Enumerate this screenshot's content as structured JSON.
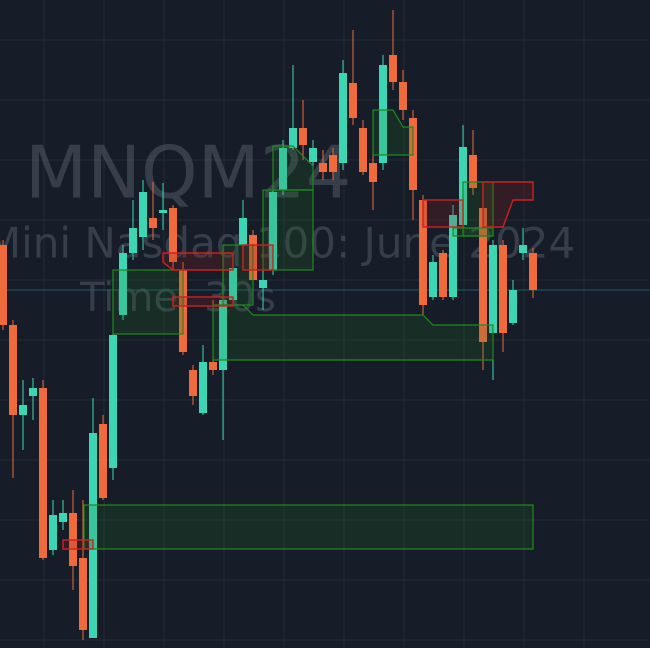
{
  "chart_data": {
    "type": "candlestick",
    "watermark": [
      "MNQM24",
      "Mini Nasdaq 100: June 2024",
      "Time: 30s"
    ],
    "up_color": "#3dd6b5",
    "down_color": "#ef6b3b",
    "ylim": [
      0,
      648
    ],
    "open": [
      403,
      323,
      233,
      252,
      260,
      98,
      126,
      135,
      90,
      10,
      224,
      180,
      333,
      395,
      411,
      430,
      435,
      440,
      378,
      278,
      235,
      286,
      278,
      348,
      403,
      413,
      360,
      378,
      458,
      500,
      520,
      486,
      485,
      493,
      485,
      565,
      520,
      485,
      485,
      593,
      566,
      530,
      448,
      351,
      395,
      351,
      423,
      493,
      440,
      315,
      403,
      325,
      395,
      395
    ],
    "high": [
      408,
      328,
      268,
      270,
      268,
      148,
      148,
      158,
      148,
      250,
      233,
      318,
      403,
      448,
      468,
      466,
      465,
      443,
      386,
      283,
      303,
      348,
      358,
      388,
      448,
      418,
      398,
      463,
      508,
      583,
      548,
      508,
      498,
      500,
      588,
      618,
      528,
      493,
      593,
      638,
      578,
      538,
      453,
      393,
      398,
      443,
      523,
      518,
      448,
      408,
      408,
      368,
      420,
      400
    ],
    "low": [
      318,
      170,
      198,
      228,
      88,
      93,
      118,
      58,
      8,
      10,
      148,
      168,
      328,
      388,
      398,
      408,
      418,
      378,
      293,
      243,
      233,
      273,
      208,
      343,
      398,
      363,
      338,
      373,
      453,
      498,
      488,
      473,
      468,
      468,
      478,
      523,
      473,
      438,
      478,
      558,
      528,
      428,
      333,
      348,
      348,
      348,
      413,
      453,
      278,
      268,
      296,
      323,
      388,
      350
    ],
    "close": [
      323,
      233,
      243,
      260,
      90,
      133,
      135,
      82,
      18,
      215,
      150,
      313,
      395,
      420,
      456,
      420,
      438,
      386,
      296,
      252,
      286,
      278,
      348,
      380,
      430,
      368,
      368,
      456,
      500,
      520,
      503,
      500,
      476,
      476,
      575,
      530,
      476,
      466,
      583,
      566,
      538,
      458,
      343,
      386,
      351,
      433,
      501,
      460,
      306,
      403,
      315,
      358,
      403,
      358
    ]
  }
}
